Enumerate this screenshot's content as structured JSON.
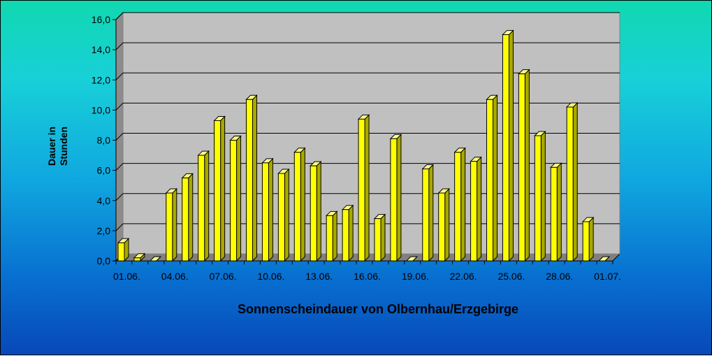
{
  "chart_data": {
    "type": "bar",
    "title": "Sonnenscheindauer von Olbernhau/Erzgebirge",
    "ylabel_lines": [
      "Dauer in",
      "Stunden"
    ],
    "ylim": [
      0,
      16
    ],
    "y_ticks": [
      "0,0",
      "2,0",
      "4,0",
      "6,0",
      "8,0",
      "10,0",
      "12,0",
      "14,0",
      "16,0"
    ],
    "x_tick_labels": [
      "01.06.",
      "04.06.",
      "07.06.",
      "10.06.",
      "13.06.",
      "16.06.",
      "19.06.",
      "22.06.",
      "25.06.",
      "28.06.",
      "01.07."
    ],
    "x_tick_every": 3,
    "categories": [
      "01.06.",
      "02.06.",
      "03.06.",
      "04.06.",
      "05.06.",
      "06.06.",
      "07.06.",
      "08.06.",
      "09.06.",
      "10.06.",
      "11.06.",
      "12.06.",
      "13.06.",
      "14.06.",
      "15.06.",
      "16.06.",
      "17.06.",
      "18.06.",
      "19.06.",
      "20.06.",
      "21.06.",
      "22.06.",
      "23.06.",
      "24.06.",
      "25.06.",
      "26.06.",
      "27.06.",
      "28.06.",
      "29.06.",
      "30.06.",
      "01.07."
    ],
    "values": [
      1.2,
      0.2,
      0.0,
      4.5,
      5.5,
      7.0,
      9.3,
      8.0,
      10.7,
      6.5,
      5.8,
      7.2,
      6.3,
      3.0,
      3.4,
      9.4,
      2.8,
      8.1,
      0.0,
      6.1,
      4.5,
      7.2,
      6.6,
      10.7,
      15.0,
      12.4,
      8.3,
      6.2,
      10.2,
      2.6,
      0.0
    ],
    "grid": true,
    "colors": {
      "bar_front": "#ffff00",
      "bar_side": "#a8a800",
      "bar_top": "#ffff88",
      "plot_back": "#c0c0c0",
      "plot_wall": "#8c8c8c",
      "plot_floor": "#808080"
    }
  }
}
